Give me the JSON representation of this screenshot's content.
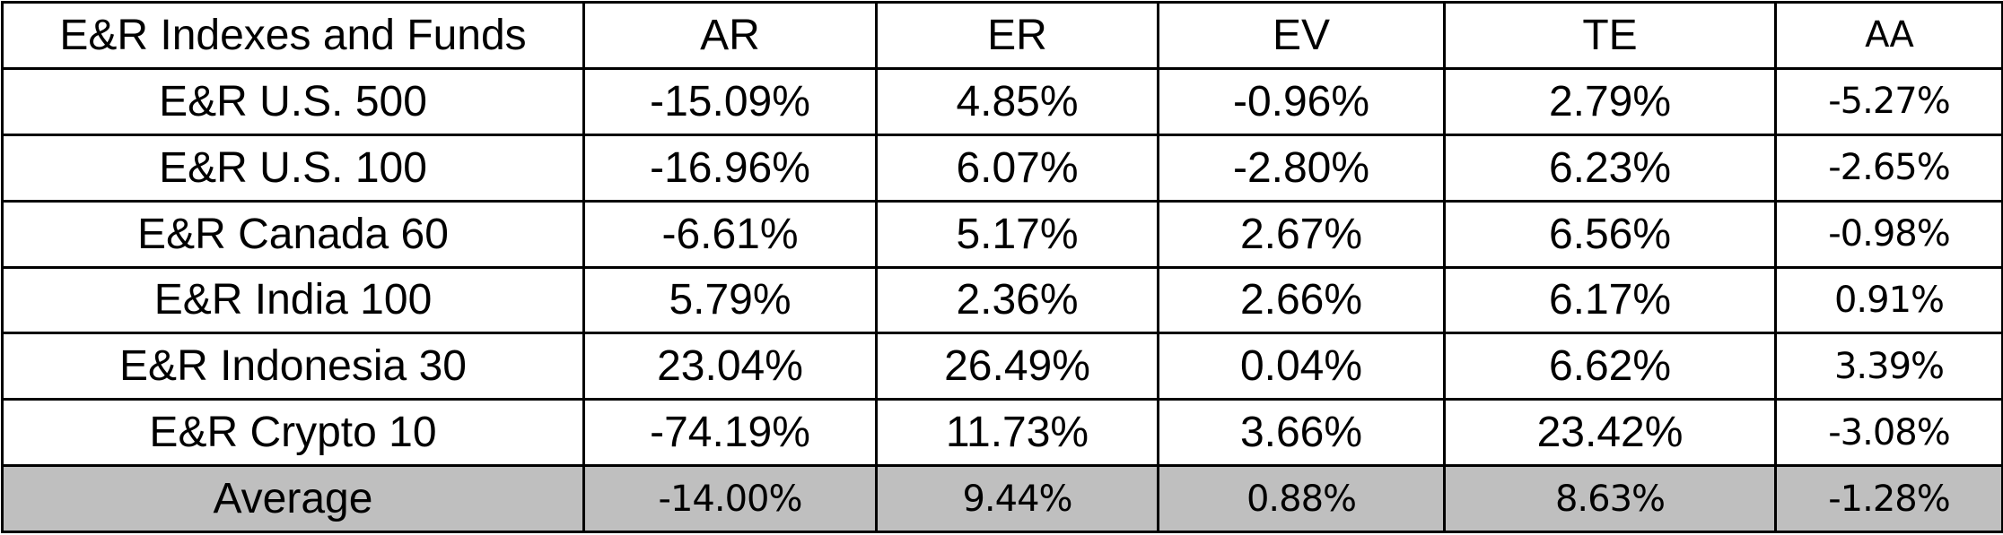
{
  "table": {
    "header": [
      "E&R Indexes and Funds",
      "AR",
      "ER",
      "EV",
      "TE",
      "AA"
    ],
    "rows": [
      [
        "E&R U.S. 500",
        "-15.09%",
        "4.85%",
        "-0.96%",
        "2.79%",
        "-5.27%"
      ],
      [
        "E&R U.S. 100",
        "-16.96%",
        "6.07%",
        "-2.80%",
        "6.23%",
        "-2.65%"
      ],
      [
        "E&R Canada 60",
        "-6.61%",
        "5.17%",
        "2.67%",
        "6.56%",
        "-0.98%"
      ],
      [
        "E&R India 100",
        "5.79%",
        "2.36%",
        "2.66%",
        "6.17%",
        "0.91%"
      ],
      [
        "E&R Indonesia 30",
        "23.04%",
        "26.49%",
        "0.04%",
        "6.62%",
        "3.39%"
      ],
      [
        "E&R Crypto 10",
        "-74.19%",
        "11.73%",
        "3.66%",
        "23.42%",
        "-3.08%"
      ]
    ],
    "average_row": [
      "Average",
      "-14.00%",
      "9.44%",
      "0.88%",
      "8.63%",
      "-1.28%"
    ]
  }
}
